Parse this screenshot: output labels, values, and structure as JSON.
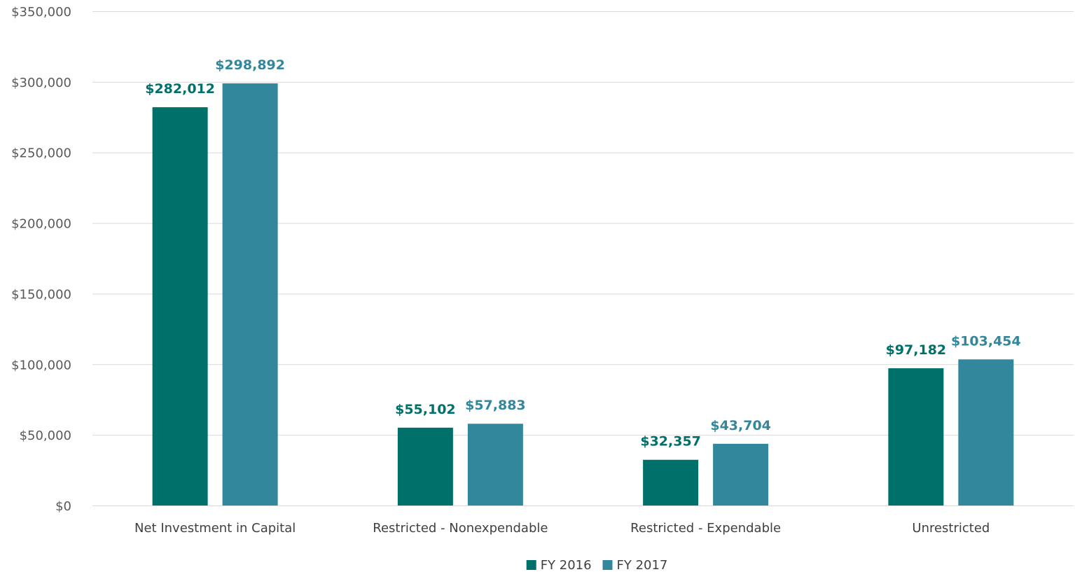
{
  "chart_data": {
    "type": "bar",
    "title": "",
    "xlabel": "",
    "ylabel": "",
    "categories": [
      "Net Investment in Capital",
      "Restricted - Nonexpendable",
      "Restricted - Expendable",
      "Unrestricted"
    ],
    "series": [
      {
        "name": "FY 2016",
        "color": "#00706b",
        "values": [
          282012,
          55102,
          32357,
          97182
        ],
        "labels": [
          "$282,012",
          "$55,102",
          "$32,357",
          "$97,182"
        ]
      },
      {
        "name": "FY 2017",
        "color": "#33879c",
        "values": [
          298892,
          57883,
          43704,
          103454
        ],
        "labels": [
          "$298,892",
          "$57,883",
          "$43,704",
          "$103,454"
        ]
      }
    ],
    "ylim": [
      0,
      350000
    ],
    "yticks": [
      0,
      50000,
      100000,
      150000,
      200000,
      250000,
      300000,
      350000
    ],
    "ytick_labels": [
      "$0",
      "$50,000",
      "$100,000",
      "$150,000",
      "$200,000",
      "$250,000",
      "$300,000",
      "$350,000"
    ],
    "grid": true,
    "legend_position": "bottom-center",
    "data_labels": true
  }
}
